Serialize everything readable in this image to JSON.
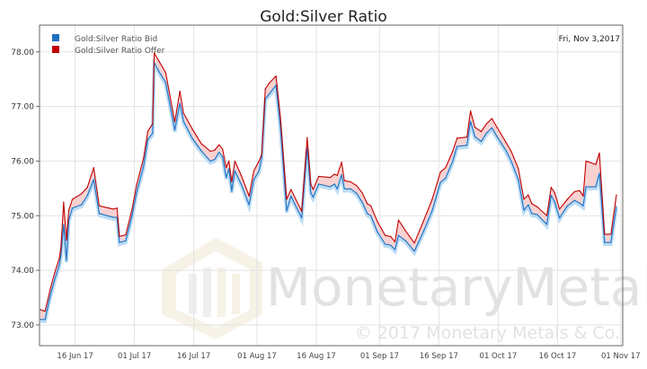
{
  "chart_data": {
    "type": "line",
    "title": "Gold:Silver Ratio",
    "date_label": "Fri, Nov 3,2017",
    "xlabel": "",
    "ylabel": "",
    "x_units": "day of year 2017",
    "xlim": [
      158,
      305.5
    ],
    "ylim": [
      72.62,
      78.49
    ],
    "grid": true,
    "legend_position": "top-left",
    "y_ticks": [
      {
        "value": 73,
        "label": "73.00"
      },
      {
        "value": 74,
        "label": "74.00"
      },
      {
        "value": 75,
        "label": "75.00"
      },
      {
        "value": 76,
        "label": "76.00"
      },
      {
        "value": 77,
        "label": "77.00"
      },
      {
        "value": 78,
        "label": "78.00"
      }
    ],
    "x_ticks": [
      {
        "value": 167,
        "label": "16 Jun 17"
      },
      {
        "value": 182,
        "label": "01 Jul 17"
      },
      {
        "value": 197,
        "label": "16 Jul 17"
      },
      {
        "value": 213,
        "label": "01 Aug 17"
      },
      {
        "value": 228,
        "label": "16 Aug 17"
      },
      {
        "value": 244,
        "label": "01 Sep 17"
      },
      {
        "value": 259,
        "label": "16 Sep 17"
      },
      {
        "value": 274,
        "label": "01 Oct 17"
      },
      {
        "value": 289,
        "label": "16 Oct 17"
      },
      {
        "value": 305,
        "label": "01 Nov 17"
      }
    ],
    "x": [
      158.2,
      159.4,
      160.7,
      161.8,
      163.0,
      163.4,
      164.1,
      164.8,
      165.4,
      166.3,
      168.6,
      170.1,
      171.7,
      173.1,
      176.7,
      177.6,
      178.2,
      179.8,
      181.4,
      182.5,
      184.3,
      185.4,
      186.6,
      187.0,
      188.3,
      189.9,
      192.2,
      193.5,
      194.4,
      196.7,
      198.9,
      201.2,
      202.3,
      203.4,
      204.3,
      205.2,
      205.9,
      206.6,
      207.4,
      209.0,
      211.0,
      212.2,
      213.5,
      214.2,
      215.1,
      216.0,
      217.8,
      218.9,
      220.5,
      221.6,
      224.3,
      225.7,
      226.6,
      227.2,
      228.6,
      231.5,
      232.6,
      233.3,
      234.4,
      235.1,
      236.7,
      238.2,
      239.6,
      240.9,
      241.8,
      243.4,
      245.4,
      246.8,
      247.9,
      248.8,
      250.6,
      252.8,
      255.1,
      257.3,
      259.4,
      260.7,
      262.5,
      263.6,
      266.1,
      267.0,
      268.1,
      269.7,
      271.0,
      272.4,
      273.7,
      276.0,
      277.3,
      279.1,
      280.5,
      281.6,
      282.5,
      283.9,
      286.3,
      287.4,
      288.3,
      289.5,
      291.5,
      293.3,
      294.6,
      295.5,
      296.2,
      298.7,
      299.6,
      300.9,
      302.5,
      303.9
    ],
    "series": [
      {
        "name": "Gold:Silver Ratio Bid",
        "color": "#1f6fc0",
        "values": [
          73.1,
          73.1,
          73.53,
          73.82,
          74.1,
          74.27,
          74.84,
          74.18,
          74.92,
          75.14,
          75.2,
          75.37,
          75.66,
          75.04,
          74.97,
          74.97,
          74.51,
          74.54,
          75.0,
          75.41,
          75.9,
          76.4,
          76.51,
          77.8,
          77.63,
          77.44,
          76.57,
          77.06,
          76.73,
          76.41,
          76.19,
          76.0,
          76.03,
          76.16,
          76.08,
          75.7,
          75.86,
          75.45,
          75.82,
          75.58,
          75.2,
          75.66,
          75.82,
          76.07,
          77.14,
          77.22,
          77.39,
          76.64,
          75.09,
          75.36,
          74.96,
          76.24,
          75.42,
          75.34,
          75.58,
          75.53,
          75.58,
          75.49,
          75.75,
          75.49,
          75.49,
          75.41,
          75.25,
          75.04,
          75.0,
          74.71,
          74.48,
          74.46,
          74.38,
          74.64,
          74.54,
          74.35,
          74.71,
          75.09,
          75.61,
          75.69,
          76.0,
          76.27,
          76.29,
          76.73,
          76.45,
          76.36,
          76.51,
          76.61,
          76.45,
          76.19,
          76.0,
          75.66,
          75.1,
          75.2,
          75.04,
          75.02,
          74.84,
          75.37,
          75.25,
          74.96,
          75.18,
          75.28,
          75.23,
          75.18,
          75.53,
          75.53,
          75.78,
          74.51,
          74.51,
          75.17
        ]
      },
      {
        "name": "Gold:Silver Ratio Offer",
        "color": "#c00000",
        "values": [
          73.28,
          73.25,
          73.65,
          73.95,
          74.22,
          74.4,
          75.25,
          74.55,
          75.1,
          75.3,
          75.4,
          75.52,
          75.88,
          75.18,
          75.12,
          75.14,
          74.62,
          74.65,
          75.12,
          75.55,
          76.05,
          76.55,
          76.68,
          77.98,
          77.82,
          77.62,
          76.72,
          77.28,
          76.88,
          76.58,
          76.32,
          76.18,
          76.2,
          76.3,
          76.22,
          75.88,
          76.0,
          75.62,
          76.0,
          75.74,
          75.36,
          75.82,
          76.0,
          76.12,
          77.32,
          77.42,
          77.56,
          76.82,
          75.3,
          75.48,
          75.08,
          76.43,
          75.58,
          75.48,
          75.72,
          75.7,
          75.76,
          75.74,
          75.98,
          75.64,
          75.62,
          75.55,
          75.42,
          75.22,
          75.18,
          74.9,
          74.64,
          74.62,
          74.52,
          74.92,
          74.72,
          74.5,
          74.9,
          75.3,
          75.8,
          75.88,
          76.18,
          76.42,
          76.44,
          76.92,
          76.62,
          76.54,
          76.68,
          76.78,
          76.62,
          76.34,
          76.18,
          75.86,
          75.3,
          75.38,
          75.22,
          75.16,
          75.0,
          75.52,
          75.42,
          75.12,
          75.3,
          75.44,
          75.46,
          75.36,
          76.0,
          75.94,
          76.15,
          74.66,
          74.66,
          75.38
        ]
      }
    ]
  },
  "watermark": {
    "brand": "MonetaryMetals",
    "copyright": "© 2017 Monetary Metals & Co."
  }
}
